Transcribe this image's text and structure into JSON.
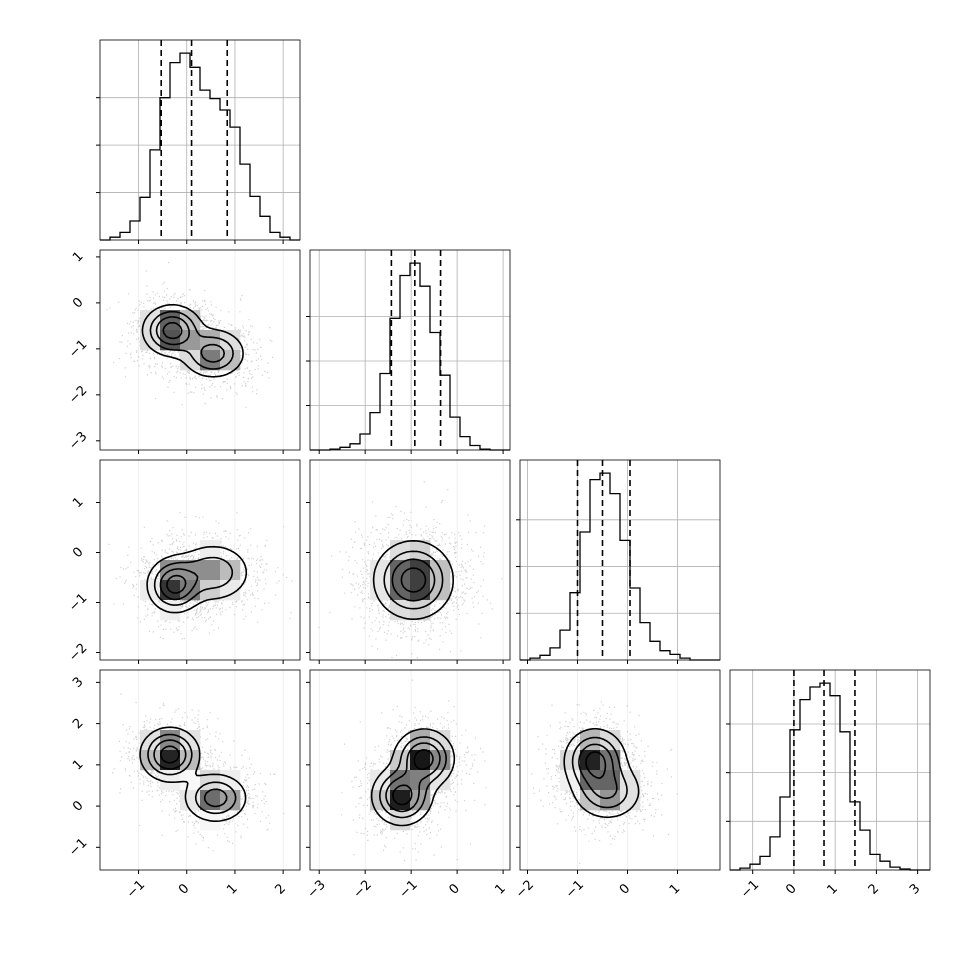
{
  "chart_data": {
    "type": "corner",
    "dimensions": 4,
    "colors": {
      "line": "#000000",
      "grid": "#b0b0b0",
      "density_max": "#000000",
      "points": "#9a9a9a"
    },
    "axes": [
      {
        "index": 0,
        "range": [
          -1.8,
          2.35
        ],
        "ticks": [
          -1,
          0,
          1,
          2
        ],
        "tick_labels": [
          "−1",
          "0",
          "1",
          "2"
        ],
        "quantiles": [
          -0.53,
          0.1,
          0.84
        ]
      },
      {
        "index": 1,
        "range": [
          -3.2,
          1.15
        ],
        "ticks": [
          -3,
          -2,
          -1,
          0,
          1
        ],
        "tick_labels": [
          "−3",
          "−2",
          "−1",
          "0",
          "1"
        ],
        "quantiles": [
          -1.43,
          -0.92,
          -0.36
        ]
      },
      {
        "index": 2,
        "range": [
          -2.15,
          1.85
        ],
        "ticks": [
          -2,
          -1,
          0,
          1
        ],
        "tick_labels": [
          "−2",
          "−1",
          "0",
          "1"
        ],
        "quantiles": [
          -1.0,
          -0.5,
          0.05
        ]
      },
      {
        "index": 3,
        "range": [
          -1.55,
          3.3
        ],
        "ticks": [
          -1,
          0,
          1,
          2,
          3
        ],
        "tick_labels": [
          "−1",
          "0",
          "1",
          "2",
          "3"
        ],
        "quantiles": [
          0.0,
          0.73,
          1.48
        ]
      }
    ],
    "histograms": [
      {
        "dim": 0,
        "bin_start": -1.8,
        "bin_width": 0.2075,
        "values": [
          0,
          3,
          8,
          20,
          45,
          95,
          150,
          187,
          197,
          182,
          158,
          149,
          137,
          119,
          80,
          46,
          25,
          8,
          3,
          0
        ]
      },
      {
        "dim": 1,
        "bin_start": -3.2,
        "bin_width": 0.2175,
        "values": [
          0,
          0,
          1,
          3,
          7,
          18,
          42,
          86,
          148,
          196,
          210,
          184,
          132,
          84,
          37,
          15,
          5,
          1,
          0,
          0
        ]
      },
      {
        "dim": 2,
        "bin_start": -2.15,
        "bin_width": 0.2,
        "values": [
          0,
          2,
          5,
          13,
          32,
          72,
          137,
          193,
          200,
          178,
          128,
          77,
          40,
          20,
          10,
          6,
          2,
          0,
          0,
          0
        ]
      },
      {
        "dim": 3,
        "bin_start": -1.55,
        "bin_width": 0.2425,
        "values": [
          0,
          2,
          6,
          14,
          34,
          75,
          144,
          175,
          188,
          192,
          179,
          142,
          70,
          41,
          16,
          9,
          3,
          1,
          0,
          0
        ]
      }
    ],
    "pairs": [
      {
        "x_dim": 0,
        "y_dim": 1,
        "peaks": [
          {
            "x": -0.3,
            "y": -0.6,
            "sx": 0.3,
            "sy": 0.27,
            "w": 1.0
          },
          {
            "x": 0.55,
            "y": -1.1,
            "sx": 0.33,
            "sy": 0.27,
            "w": 0.7
          }
        ]
      },
      {
        "x_dim": 0,
        "y_dim": 2,
        "peaks": [
          {
            "x": -0.25,
            "y": -0.65,
            "sx": 0.28,
            "sy": 0.27,
            "w": 1.0
          },
          {
            "x": 0.55,
            "y": -0.4,
            "sx": 0.4,
            "sy": 0.3,
            "w": 0.55
          }
        ]
      },
      {
        "x_dim": 1,
        "y_dim": 2,
        "peaks": [
          {
            "x": -0.95,
            "y": -0.55,
            "sx": 0.42,
            "sy": 0.38,
            "w": 1.0
          }
        ]
      },
      {
        "x_dim": 0,
        "y_dim": 3,
        "peaks": [
          {
            "x": -0.35,
            "y": 1.25,
            "sx": 0.3,
            "sy": 0.32,
            "w": 1.0
          },
          {
            "x": 0.6,
            "y": 0.2,
            "sx": 0.33,
            "sy": 0.3,
            "w": 0.7
          }
        ]
      },
      {
        "x_dim": 1,
        "y_dim": 3,
        "peaks": [
          {
            "x": -1.2,
            "y": 0.25,
            "sx": 0.32,
            "sy": 0.35,
            "w": 0.9
          },
          {
            "x": -0.72,
            "y": 1.15,
            "sx": 0.32,
            "sy": 0.35,
            "w": 0.9
          }
        ]
      },
      {
        "x_dim": 2,
        "y_dim": 3,
        "peaks": [
          {
            "x": -0.65,
            "y": 1.1,
            "sx": 0.3,
            "sy": 0.38,
            "w": 1.0
          },
          {
            "x": -0.4,
            "y": 0.35,
            "sx": 0.35,
            "sy": 0.35,
            "w": 0.6
          }
        ]
      }
    ],
    "contour_levels": [
      0.12,
      0.32,
      0.55,
      0.82
    ],
    "grid": true,
    "legend": "none",
    "title": "",
    "xlabel": "",
    "ylabel": ""
  }
}
